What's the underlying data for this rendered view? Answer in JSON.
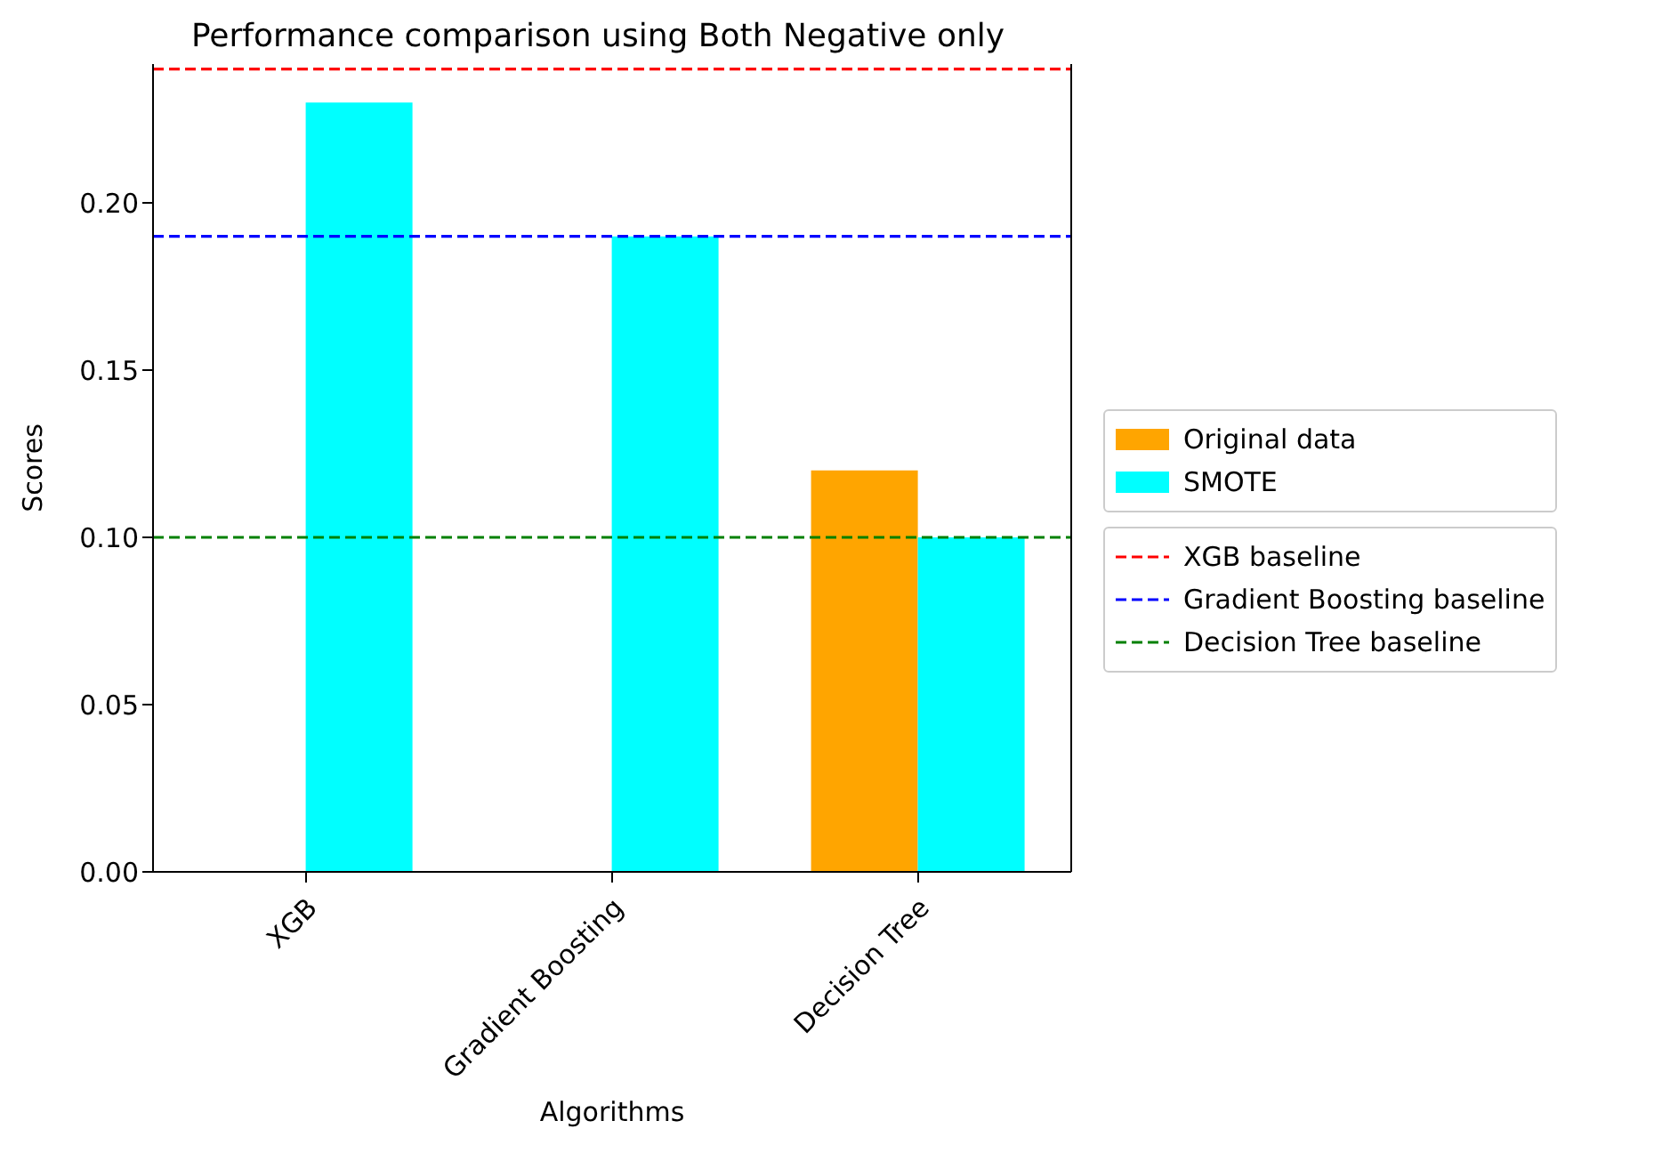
{
  "chart_data": {
    "type": "bar",
    "title": "Performance comparison using Both Negative only",
    "xlabel": "Algorithms",
    "ylabel": "Scores",
    "categories": [
      "XGB",
      "Gradient Boosting",
      "Decision Tree"
    ],
    "series": [
      {
        "name": "Original data",
        "color": "#ffa500",
        "values": [
          0,
          0,
          0.12
        ]
      },
      {
        "name": "SMOTE",
        "color": "#00ffff",
        "values": [
          0.23,
          0.19,
          0.1
        ]
      }
    ],
    "ylim": [
      0,
      0.2415
    ],
    "yticks": [
      {
        "value": 0,
        "label": "0.00"
      },
      {
        "value": 0.05,
        "label": "0.05"
      },
      {
        "value": 0.1,
        "label": "0.10"
      },
      {
        "value": 0.15,
        "label": "0.15"
      },
      {
        "value": 0.2,
        "label": "0.20"
      }
    ],
    "ref_lines": [
      {
        "axis": "y",
        "value": 0.24,
        "label": "XGB baseline",
        "color": "#ff0000",
        "line_style": "dashed"
      },
      {
        "axis": "y",
        "value": 0.19,
        "label": "Gradient Boosting baseline",
        "color": "#0000ff",
        "line_style": "dashed"
      },
      {
        "axis": "y",
        "value": 0.1,
        "label": "Decision Tree baseline",
        "color": "#008000",
        "line_style": "dashed"
      }
    ],
    "grid": false,
    "legend": "right"
  }
}
